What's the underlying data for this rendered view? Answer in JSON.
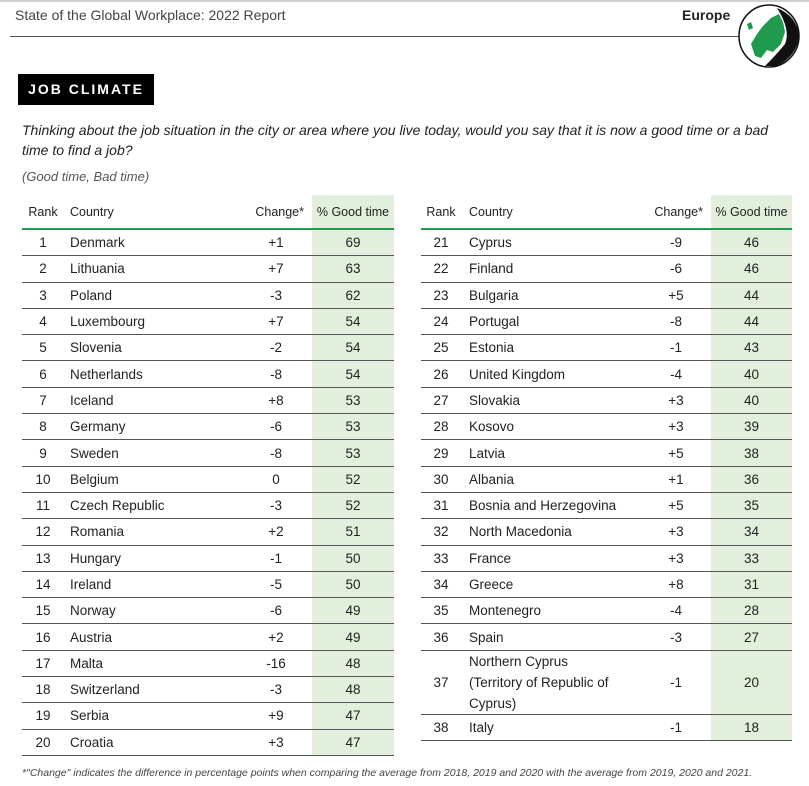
{
  "header": {
    "report_title": "State of the Global Workplace: 2022 Report",
    "region": "Europe",
    "globe_icon": "europe-globe-icon",
    "accent_color": "#1f9a4f",
    "highlight_color": "#e3efdd"
  },
  "section": {
    "badge": "JOB CLIMATE",
    "question": "Thinking about the job situation in the city or area where you live today, would you say that it is now a good time or a bad time to find a job?",
    "options": "(Good time, Bad time)"
  },
  "columns": {
    "rank": "Rank",
    "country": "Country",
    "change": "Change*",
    "good": "% Good time"
  },
  "left_rows": [
    {
      "rank": "1",
      "country": "Denmark",
      "change": "+1",
      "good": "69"
    },
    {
      "rank": "2",
      "country": "Lithuania",
      "change": "+7",
      "good": "63"
    },
    {
      "rank": "3",
      "country": "Poland",
      "change": "-3",
      "good": "62"
    },
    {
      "rank": "4",
      "country": "Luxembourg",
      "change": "+7",
      "good": "54"
    },
    {
      "rank": "5",
      "country": "Slovenia",
      "change": "-2",
      "good": "54"
    },
    {
      "rank": "6",
      "country": "Netherlands",
      "change": "-8",
      "good": "54"
    },
    {
      "rank": "7",
      "country": "Iceland",
      "change": "+8",
      "good": "53"
    },
    {
      "rank": "8",
      "country": "Germany",
      "change": "-6",
      "good": "53"
    },
    {
      "rank": "9",
      "country": "Sweden",
      "change": "-8",
      "good": "53"
    },
    {
      "rank": "10",
      "country": "Belgium",
      "change": "0",
      "good": "52"
    },
    {
      "rank": "11",
      "country": "Czech Republic",
      "change": "-3",
      "good": "52"
    },
    {
      "rank": "12",
      "country": "Romania",
      "change": "+2",
      "good": "51"
    },
    {
      "rank": "13",
      "country": "Hungary",
      "change": "-1",
      "good": "50"
    },
    {
      "rank": "14",
      "country": "Ireland",
      "change": "-5",
      "good": "50"
    },
    {
      "rank": "15",
      "country": "Norway",
      "change": "-6",
      "good": "49"
    },
    {
      "rank": "16",
      "country": "Austria",
      "change": "+2",
      "good": "49"
    },
    {
      "rank": "17",
      "country": "Malta",
      "change": "-16",
      "good": "48"
    },
    {
      "rank": "18",
      "country": "Switzerland",
      "change": "-3",
      "good": "48"
    },
    {
      "rank": "19",
      "country": "Serbia",
      "change": "+9",
      "good": "47"
    },
    {
      "rank": "20",
      "country": "Croatia",
      "change": "+3",
      "good": "47"
    }
  ],
  "right_rows": [
    {
      "rank": "21",
      "country": "Cyprus",
      "change": "-9",
      "good": "46"
    },
    {
      "rank": "22",
      "country": "Finland",
      "change": "-6",
      "good": "46"
    },
    {
      "rank": "23",
      "country": "Bulgaria",
      "change": "+5",
      "good": "44"
    },
    {
      "rank": "24",
      "country": "Portugal",
      "change": "-8",
      "good": "44"
    },
    {
      "rank": "25",
      "country": "Estonia",
      "change": "-1",
      "good": "43"
    },
    {
      "rank": "26",
      "country": "United Kingdom",
      "change": "-4",
      "good": "40"
    },
    {
      "rank": "27",
      "country": "Slovakia",
      "change": "+3",
      "good": "40"
    },
    {
      "rank": "28",
      "country": "Kosovo",
      "change": "+3",
      "good": "39"
    },
    {
      "rank": "29",
      "country": "Latvia",
      "change": "+5",
      "good": "38"
    },
    {
      "rank": "30",
      "country": "Albania",
      "change": "+1",
      "good": "36"
    },
    {
      "rank": "31",
      "country": "Bosnia and Herzegovina",
      "change": "+5",
      "good": "35"
    },
    {
      "rank": "32",
      "country": "North Macedonia",
      "change": "+3",
      "good": "34"
    },
    {
      "rank": "33",
      "country": "France",
      "change": "+3",
      "good": "33"
    },
    {
      "rank": "34",
      "country": "Greece",
      "change": "+8",
      "good": "31"
    },
    {
      "rank": "35",
      "country": "Montenegro",
      "change": "-4",
      "good": "28"
    },
    {
      "rank": "36",
      "country": "Spain",
      "change": "-3",
      "good": "27"
    },
    {
      "rank": "37",
      "country": "Northern Cyprus (Territory of Republic of Cyprus)",
      "change": "-1",
      "good": "20"
    },
    {
      "rank": "38",
      "country": "Italy",
      "change": "-1",
      "good": "18"
    }
  ],
  "footnote": "*\"Change\" indicates the difference in percentage points when comparing the average from 2018, 2019 and 2020 with the average from 2019, 2020 and 2021."
}
